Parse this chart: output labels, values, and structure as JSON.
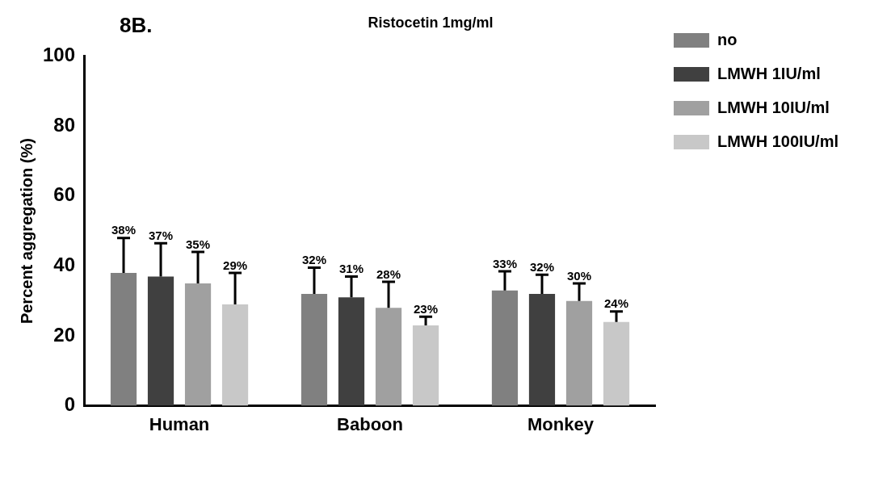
{
  "chart_data": {
    "type": "bar",
    "title": "Ristocetin 1mg/ml",
    "ylabel": "Percent aggregation (%)",
    "annotations": [
      "8B."
    ],
    "categories": [
      "Human",
      "Baboon",
      "Monkey"
    ],
    "series": [
      {
        "name": "no",
        "color": "#808080",
        "values": [
          38,
          32,
          33
        ],
        "errors": [
          [
            38,
            48
          ],
          [
            32,
            39.5
          ],
          [
            33,
            38.5
          ]
        ],
        "value_labels": [
          "38%",
          "32%",
          "33%"
        ]
      },
      {
        "name": "LMWH 1IU/ml",
        "color": "#404040",
        "values": [
          37,
          31,
          32
        ],
        "errors": [
          [
            37,
            46.5
          ],
          [
            31,
            37
          ],
          [
            32,
            37.5
          ]
        ],
        "value_labels": [
          "37%",
          "31%",
          "32%"
        ]
      },
      {
        "name": "LMWH 10IU/ml",
        "color": "#a0a0a0",
        "values": [
          35,
          28,
          30
        ],
        "errors": [
          [
            35,
            44
          ],
          [
            28,
            35.5
          ],
          [
            30,
            35
          ]
        ],
        "value_labels": [
          "35%",
          "28%",
          "30%"
        ]
      },
      {
        "name": "LMWH 100IU/ml",
        "color": "#c8c8c8",
        "values": [
          29,
          23,
          24
        ],
        "errors": [
          [
            29,
            38
          ],
          [
            23,
            25.5
          ],
          [
            24,
            27
          ]
        ],
        "value_labels": [
          "29%",
          "23%",
          "24%"
        ]
      }
    ],
    "ylim": [
      0,
      100
    ],
    "yticks": [
      0,
      20,
      40,
      60,
      80,
      100
    ],
    "grid": false,
    "legend": "right"
  }
}
